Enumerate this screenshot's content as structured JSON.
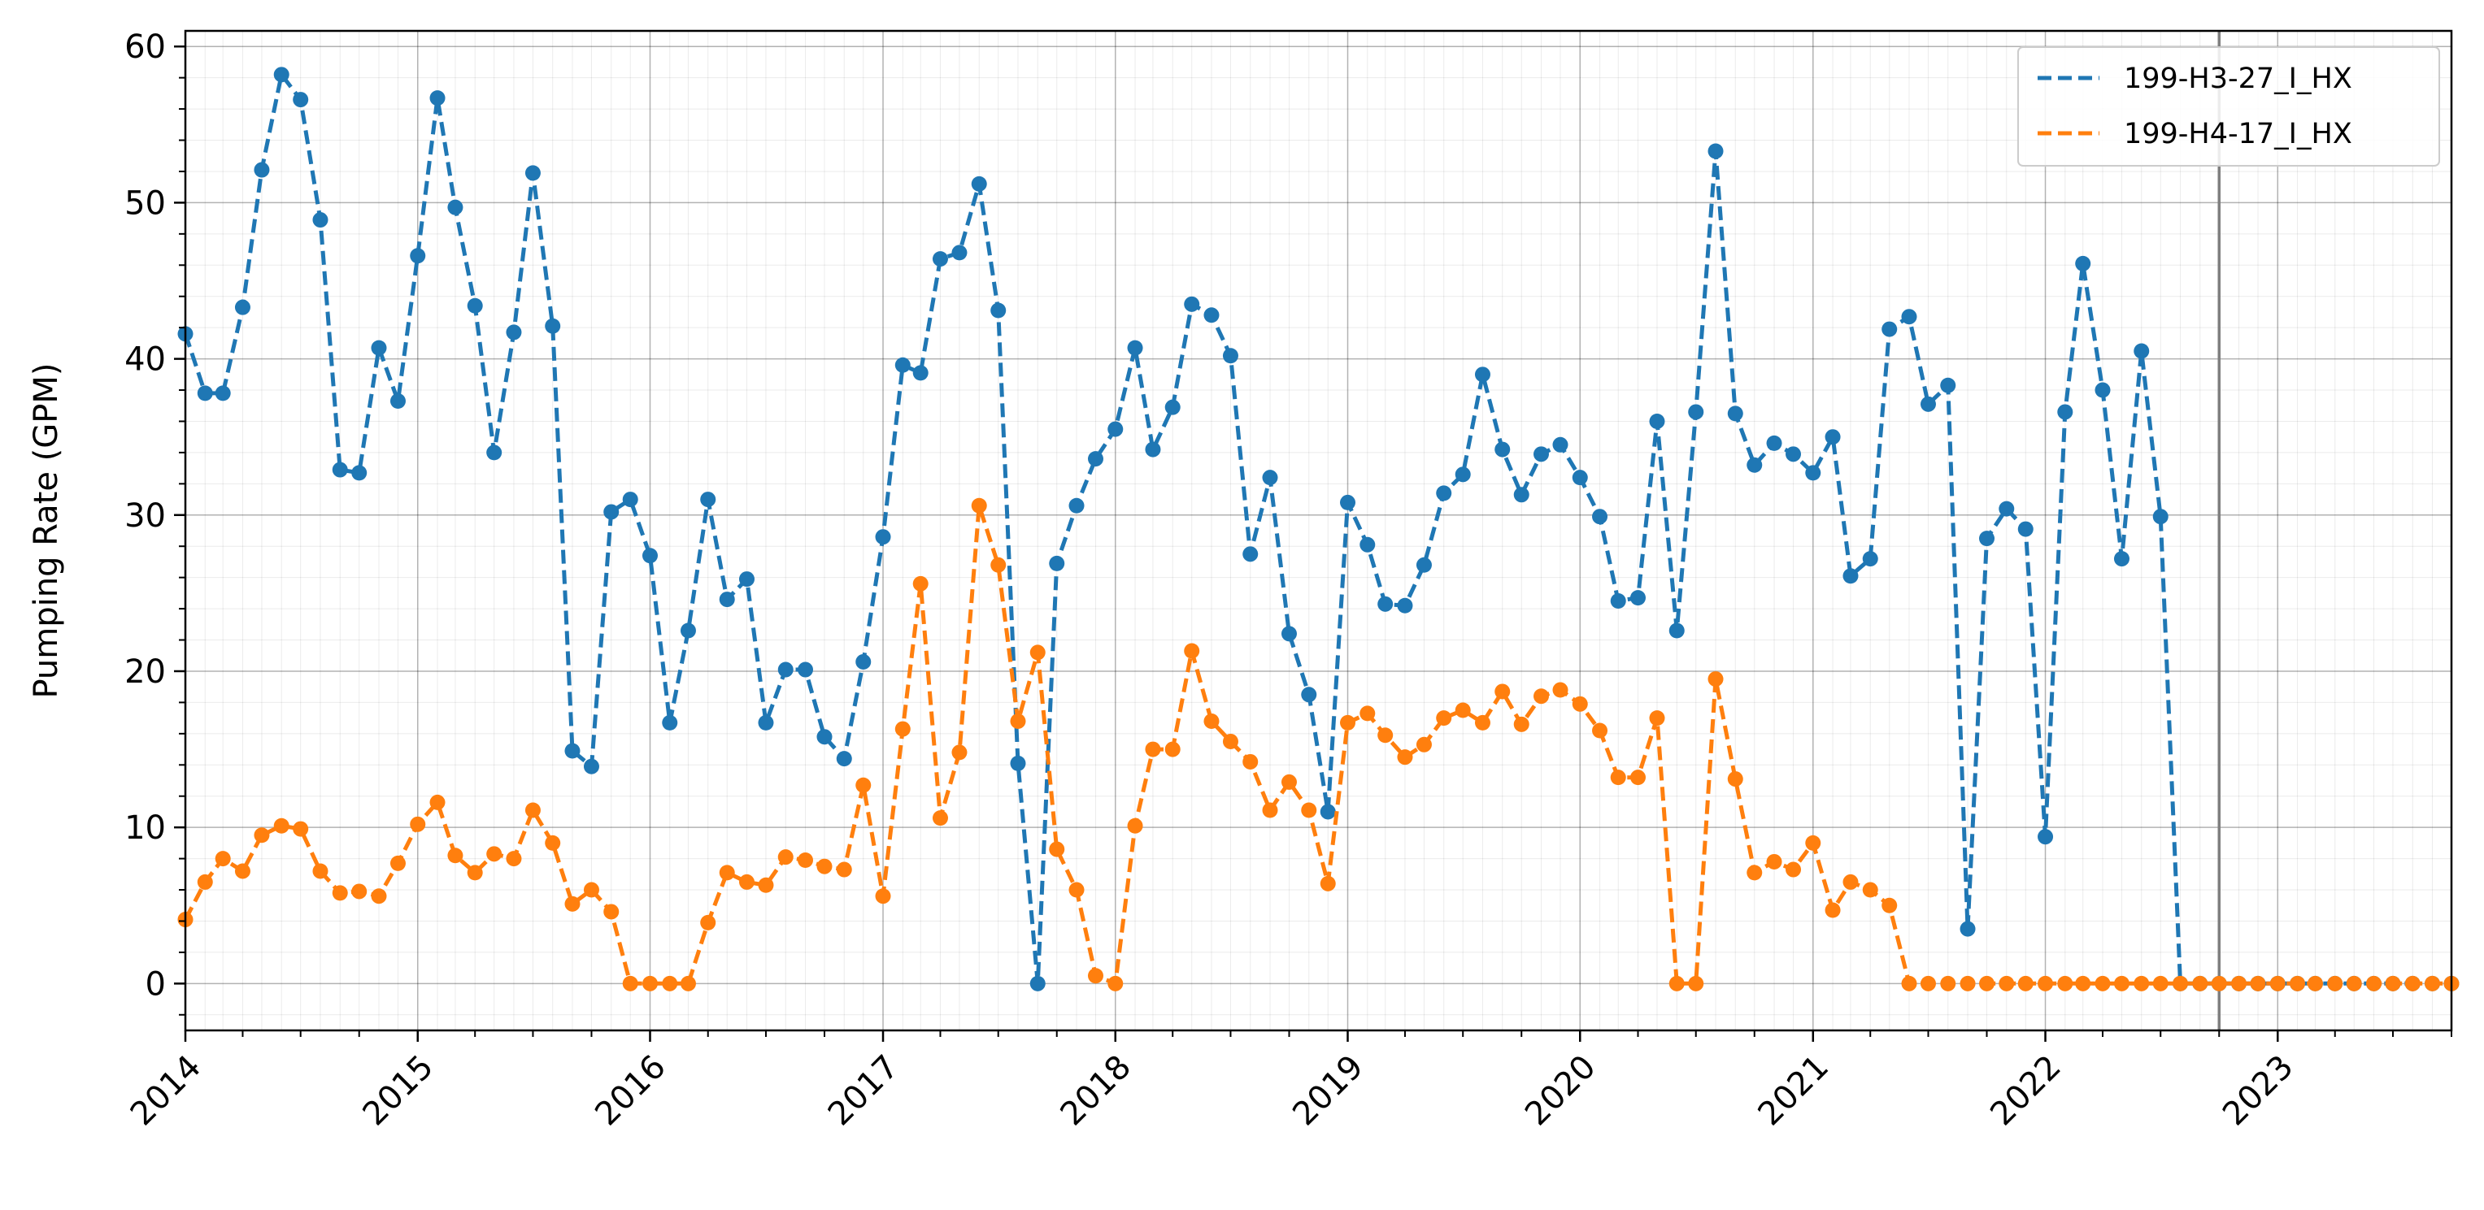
{
  "chart_data": {
    "type": "line",
    "title": "",
    "xlabel": "",
    "ylabel": "Pumping Rate (GPM)",
    "x_axis": {
      "type": "date",
      "range": [
        "2014-01-01",
        "2023-10-01"
      ],
      "tick_labels": [
        "2014",
        "2015",
        "2016",
        "2017",
        "2018",
        "2019",
        "2020",
        "2021",
        "2022",
        "2023"
      ]
    },
    "y_axis": {
      "range": [
        -3,
        61
      ],
      "ticks": [
        0,
        10,
        20,
        30,
        40,
        50,
        60
      ],
      "tick_labels": [
        "0",
        "10",
        "20",
        "30",
        "40",
        "50",
        "60"
      ]
    },
    "grid": true,
    "legend": "top-right",
    "reference_line": {
      "date": "2022-10-01",
      "color": "#7f7f7f"
    },
    "x": [
      "2014-01-01",
      "2014-02-01",
      "2014-03-01",
      "2014-04-01",
      "2014-05-01",
      "2014-06-01",
      "2014-07-01",
      "2014-08-01",
      "2014-09-01",
      "2014-10-01",
      "2014-11-01",
      "2014-12-01",
      "2015-01-01",
      "2015-02-01",
      "2015-03-01",
      "2015-04-01",
      "2015-05-01",
      "2015-06-01",
      "2015-07-01",
      "2015-08-01",
      "2015-09-01",
      "2015-10-01",
      "2015-11-01",
      "2015-12-01",
      "2016-01-01",
      "2016-02-01",
      "2016-03-01",
      "2016-04-01",
      "2016-05-01",
      "2016-06-01",
      "2016-07-01",
      "2016-08-01",
      "2016-09-01",
      "2016-10-01",
      "2016-11-01",
      "2016-12-01",
      "2017-01-01",
      "2017-02-01",
      "2017-03-01",
      "2017-04-01",
      "2017-05-01",
      "2017-06-01",
      "2017-07-01",
      "2017-08-01",
      "2017-09-01",
      "2017-10-01",
      "2017-11-01",
      "2017-12-01",
      "2018-01-01",
      "2018-02-01",
      "2018-03-01",
      "2018-04-01",
      "2018-05-01",
      "2018-06-01",
      "2018-07-01",
      "2018-08-01",
      "2018-09-01",
      "2018-10-01",
      "2018-11-01",
      "2018-12-01",
      "2019-01-01",
      "2019-02-01",
      "2019-03-01",
      "2019-04-01",
      "2019-05-01",
      "2019-06-01",
      "2019-07-01",
      "2019-08-01",
      "2019-09-01",
      "2019-10-01",
      "2019-11-01",
      "2019-12-01",
      "2020-01-01",
      "2020-02-01",
      "2020-03-01",
      "2020-04-01",
      "2020-05-01",
      "2020-06-01",
      "2020-07-01",
      "2020-08-01",
      "2020-09-01",
      "2020-10-01",
      "2020-11-01",
      "2020-12-01",
      "2021-01-01",
      "2021-02-01",
      "2021-03-01",
      "2021-04-01",
      "2021-05-01",
      "2021-06-01",
      "2021-07-01",
      "2021-08-01",
      "2021-09-01",
      "2021-10-01",
      "2021-11-01",
      "2021-12-01",
      "2022-01-01",
      "2022-02-01",
      "2022-03-01",
      "2022-04-01",
      "2022-05-01",
      "2022-06-01",
      "2022-07-01",
      "2022-08-01",
      "2022-09-01",
      "2022-10-01",
      "2022-11-01",
      "2022-12-01",
      "2023-01-01",
      "2023-02-01",
      "2023-03-01",
      "2023-04-01",
      "2023-05-01",
      "2023-06-01",
      "2023-07-01",
      "2023-08-01",
      "2023-09-01",
      "2023-10-01"
    ],
    "series": [
      {
        "name": "199-H3-27_I_HX",
        "color": "#1f77b4",
        "values": [
          41.6,
          37.8,
          37.8,
          43.3,
          52.1,
          58.2,
          56.6,
          48.9,
          32.9,
          32.7,
          40.7,
          37.3,
          46.6,
          56.7,
          49.7,
          43.4,
          34.0,
          41.7,
          51.9,
          42.1,
          14.9,
          13.9,
          30.2,
          31.0,
          27.4,
          16.7,
          22.6,
          31.0,
          24.6,
          25.9,
          16.7,
          20.1,
          20.1,
          15.8,
          14.4,
          20.6,
          28.6,
          39.6,
          39.1,
          46.4,
          46.8,
          51.2,
          43.1,
          14.1,
          0.0,
          26.9,
          30.6,
          33.6,
          35.5,
          40.7,
          34.2,
          36.9,
          43.5,
          42.8,
          40.2,
          27.5,
          32.4,
          22.4,
          18.5,
          11.0,
          30.8,
          28.1,
          24.3,
          24.2,
          26.8,
          31.4,
          32.6,
          39.0,
          34.2,
          31.3,
          33.9,
          34.5,
          32.4,
          29.9,
          24.5,
          24.7,
          36.0,
          22.6,
          36.6,
          53.3,
          36.5,
          33.2,
          34.6,
          33.9,
          32.7,
          35.0,
          26.1,
          27.2,
          41.9,
          42.7,
          37.1,
          38.3,
          3.5,
          28.5,
          30.4,
          29.1,
          9.4,
          36.6,
          46.1,
          38.0,
          27.2,
          40.5,
          29.9,
          0,
          0,
          0,
          0,
          0,
          0,
          0,
          0,
          0,
          0,
          0,
          0,
          0,
          0,
          0
        ]
      },
      {
        "name": "199-H4-17_I_HX",
        "color": "#ff7f0e",
        "values": [
          4.1,
          6.5,
          8.0,
          7.2,
          9.5,
          10.1,
          9.9,
          7.2,
          5.8,
          5.9,
          5.6,
          7.7,
          10.2,
          11.6,
          8.2,
          7.1,
          8.3,
          8.0,
          11.1,
          9.0,
          5.1,
          6.0,
          4.6,
          0,
          0,
          0,
          0,
          3.9,
          7.1,
          6.5,
          6.3,
          8.1,
          7.9,
          7.5,
          7.3,
          12.7,
          5.6,
          16.3,
          25.6,
          10.6,
          14.8,
          30.6,
          26.8,
          16.8,
          21.2,
          8.6,
          6.0,
          0.5,
          0,
          10.1,
          15.0,
          15.0,
          21.3,
          16.8,
          15.5,
          14.2,
          11.1,
          12.9,
          11.1,
          6.4,
          16.7,
          17.3,
          15.9,
          14.5,
          15.3,
          17.0,
          17.5,
          16.7,
          18.7,
          16.6,
          18.4,
          18.8,
          17.9,
          16.2,
          13.2,
          13.2,
          17.0,
          0,
          0,
          19.5,
          13.1,
          7.1,
          7.8,
          7.3,
          9.0,
          4.7,
          6.5,
          6.0,
          5.0,
          0,
          0,
          0,
          0,
          0,
          0,
          0,
          0,
          0,
          0,
          0,
          0,
          0,
          0,
          0,
          0,
          0,
          0,
          0,
          0,
          0,
          0,
          0,
          0,
          0,
          0,
          0,
          0,
          0
        ]
      }
    ]
  }
}
